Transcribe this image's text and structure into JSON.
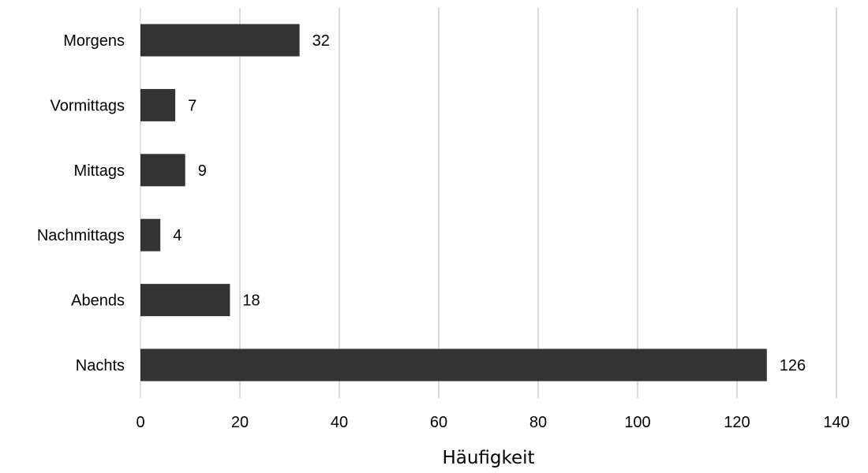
{
  "chart_data": {
    "type": "bar",
    "orientation": "horizontal",
    "categories": [
      "Morgens",
      "Vormittags",
      "Mittags",
      "Nachmittags",
      "Abends",
      "Nachts"
    ],
    "values": [
      32,
      7,
      9,
      4,
      18,
      126
    ],
    "data_labels": [
      "32",
      "7",
      "9",
      "4",
      "18",
      "126"
    ],
    "x_ticks": [
      "0",
      "20",
      "40",
      "60",
      "80",
      "100",
      "120",
      "140"
    ],
    "xlim": [
      0,
      140
    ],
    "xlabel": "Häufigkeit",
    "ylabel": "",
    "title": "",
    "grid": "vertical",
    "legend": "none",
    "bar_color": "#333333",
    "grid_color": "#d9d9d9"
  }
}
